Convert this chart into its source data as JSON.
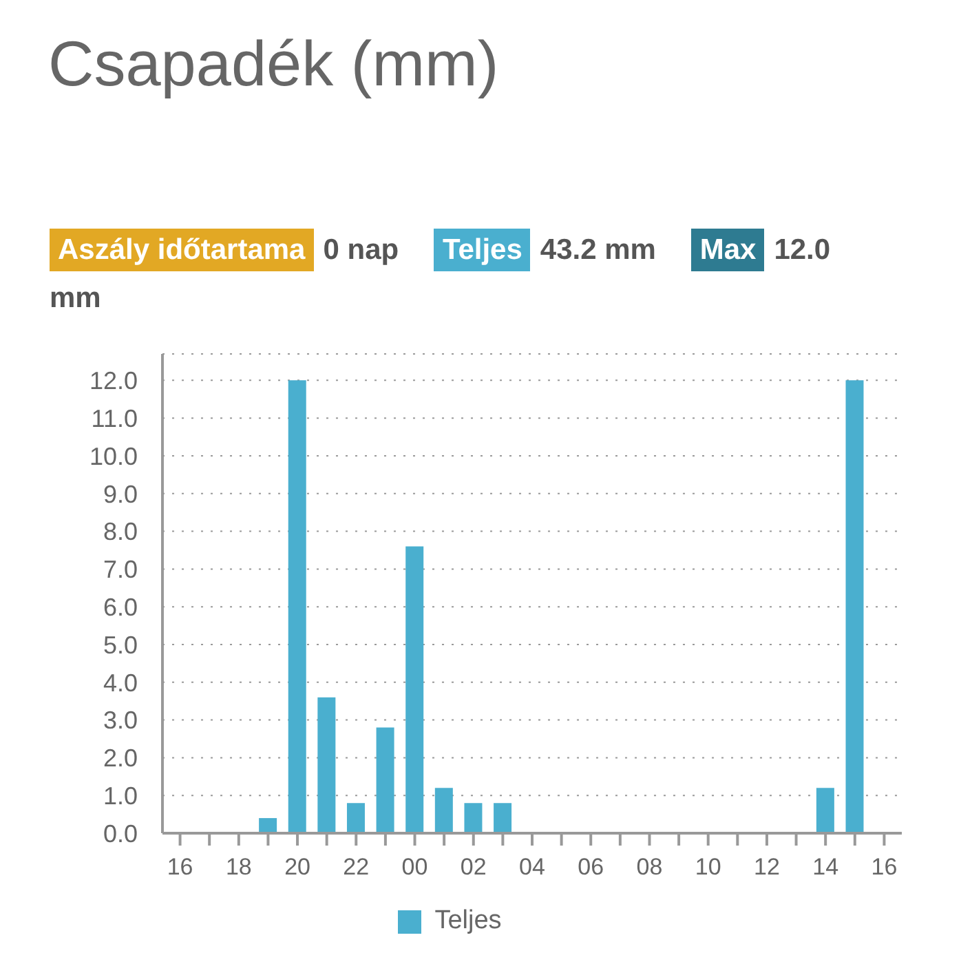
{
  "chart_data": {
    "type": "bar",
    "title": "Csapadék (mm)",
    "annotations": [
      "Aszály időtartama",
      "0 nap",
      "Teljes",
      "43.2 mm",
      "Max",
      "12.0 mm"
    ],
    "x": [
      19,
      20,
      21,
      22,
      23,
      24,
      25,
      26,
      27,
      38,
      39
    ],
    "series": [
      {
        "name": "Teljes",
        "color": "#4aafcf",
        "values": [
          0.4,
          12.0,
          3.6,
          0.8,
          2.8,
          7.6,
          1.2,
          0.8,
          0.8,
          1.2,
          12.0
        ]
      }
    ],
    "xlim": [
      15.4,
      40.6
    ],
    "xticks": [
      {
        "value": 16,
        "label": "16"
      },
      {
        "value": 17,
        "label": null
      },
      {
        "value": 18,
        "label": "18"
      },
      {
        "value": 19,
        "label": null
      },
      {
        "value": 20,
        "label": "20"
      },
      {
        "value": 21,
        "label": null
      },
      {
        "value": 22,
        "label": "22"
      },
      {
        "value": 23,
        "label": null
      },
      {
        "value": 24,
        "label": "00"
      },
      {
        "value": 25,
        "label": null
      },
      {
        "value": 26,
        "label": "02"
      },
      {
        "value": 27,
        "label": null
      },
      {
        "value": 28,
        "label": "04"
      },
      {
        "value": 29,
        "label": null
      },
      {
        "value": 30,
        "label": "06"
      },
      {
        "value": 31,
        "label": null
      },
      {
        "value": 32,
        "label": "08"
      },
      {
        "value": 33,
        "label": null
      },
      {
        "value": 34,
        "label": "10"
      },
      {
        "value": 35,
        "label": null
      },
      {
        "value": 36,
        "label": "12"
      },
      {
        "value": 37,
        "label": null
      },
      {
        "value": 38,
        "label": "14"
      },
      {
        "value": 39,
        "label": null
      },
      {
        "value": 40,
        "label": "16"
      }
    ],
    "ylim": [
      0,
      12.7
    ],
    "yticks": [
      {
        "value": 0,
        "label": "0.0"
      },
      {
        "value": 1,
        "label": "1.0"
      },
      {
        "value": 2,
        "label": "2.0"
      },
      {
        "value": 3,
        "label": "3.0"
      },
      {
        "value": 4,
        "label": "4.0"
      },
      {
        "value": 5,
        "label": "5.0"
      },
      {
        "value": 6,
        "label": "6.0"
      },
      {
        "value": 7,
        "label": "7.0"
      },
      {
        "value": 8,
        "label": "8.0"
      },
      {
        "value": 9,
        "label": "9.0"
      },
      {
        "value": 10,
        "label": "10.0"
      },
      {
        "value": 11,
        "label": "11.0"
      },
      {
        "value": 12,
        "label": "12.0"
      }
    ],
    "grid": "y",
    "legend": "bottom"
  }
}
